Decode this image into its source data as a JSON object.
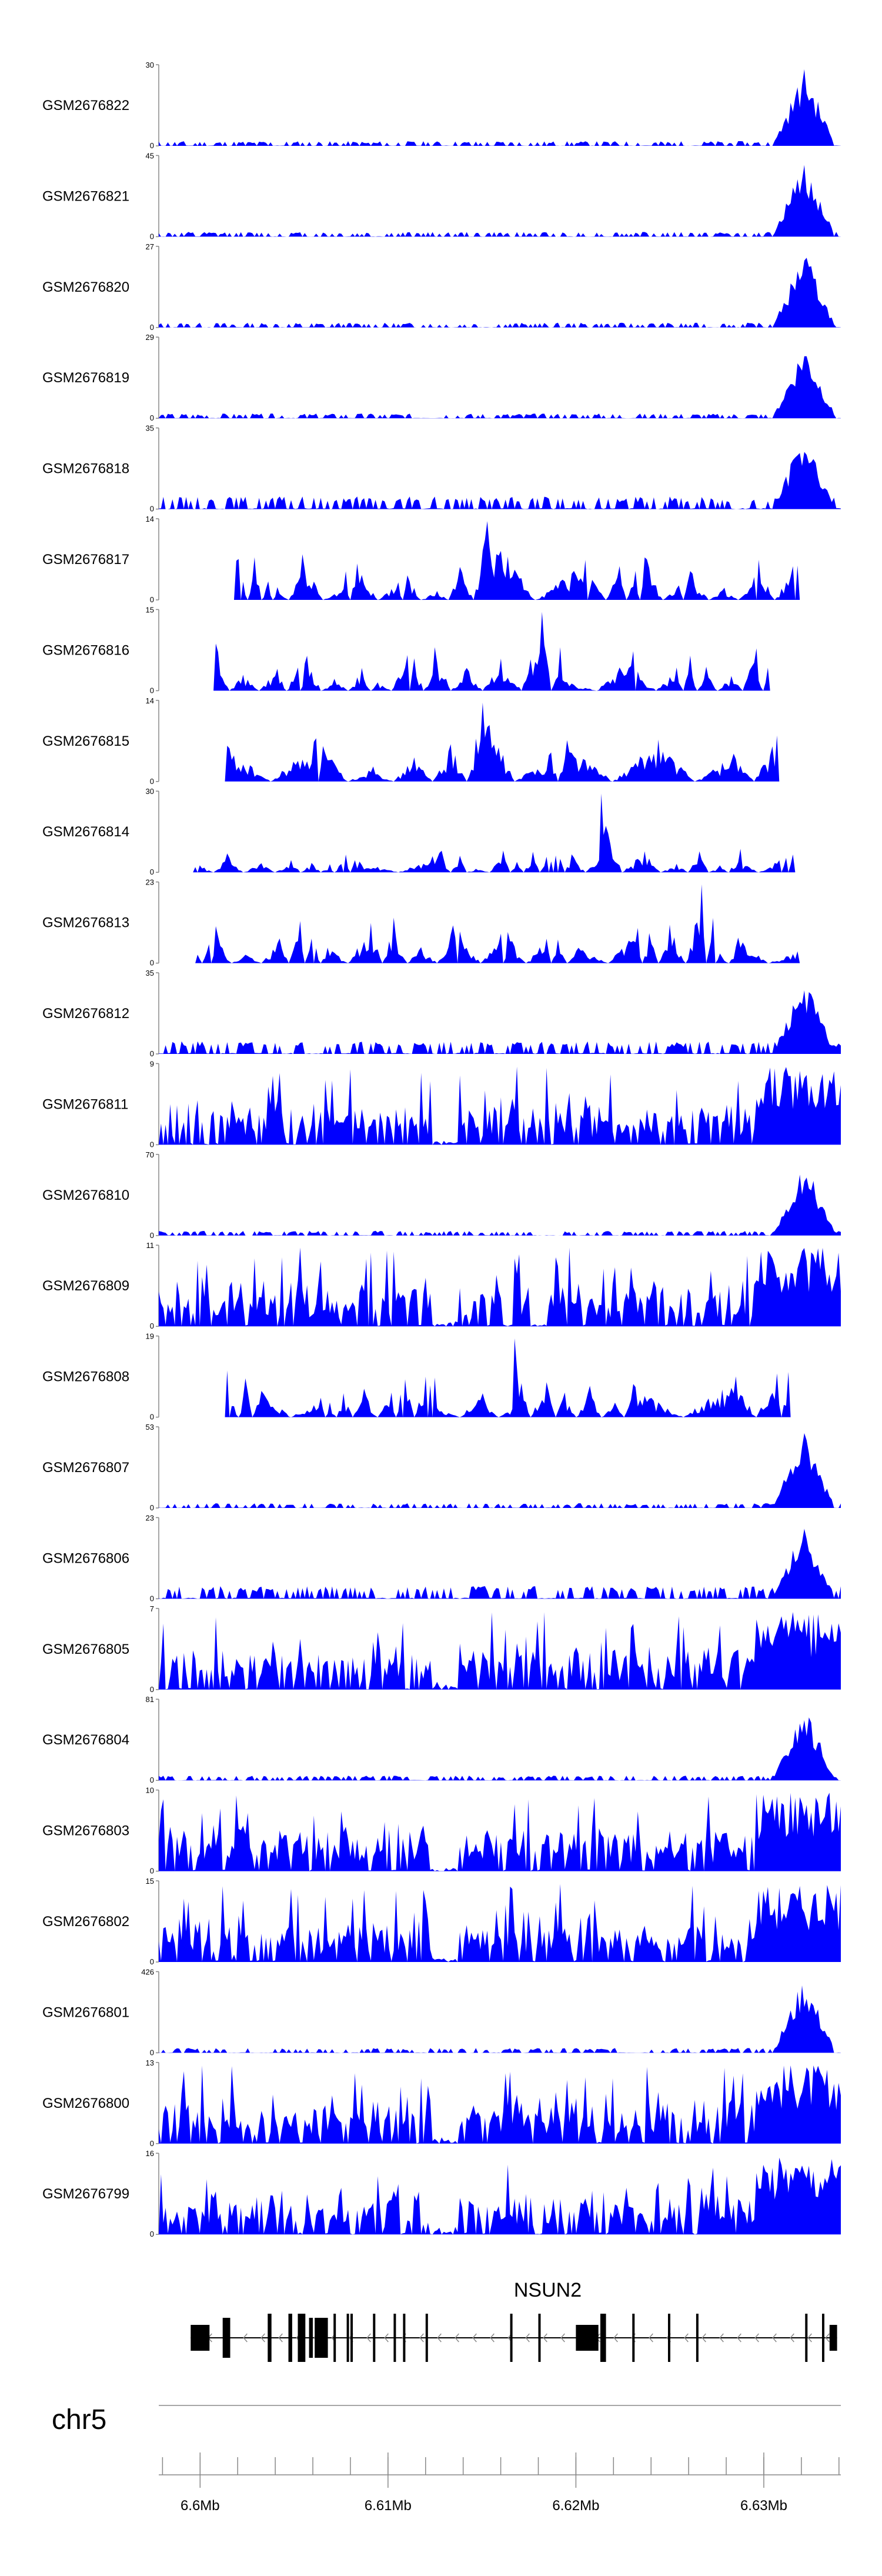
{
  "chart_data": {
    "type": "area",
    "x_range_mb": [
      6.5978,
      6.6341
    ],
    "series": [
      {
        "name": "GSM2676822",
        "ymax": "30",
        "profile": "peak",
        "seed": 11
      },
      {
        "name": "GSM2676821",
        "ymax": "45",
        "profile": "peak",
        "seed": 12
      },
      {
        "name": "GSM2676820",
        "ymax": "27",
        "profile": "peak",
        "seed": 13
      },
      {
        "name": "GSM2676819",
        "ymax": "29",
        "profile": "peak",
        "seed": 14
      },
      {
        "name": "GSM2676818",
        "ymax": "35",
        "profile": "peak_mid",
        "seed": 15
      },
      {
        "name": "GSM2676817",
        "ymax": "14",
        "profile": "sparse",
        "seed": 16
      },
      {
        "name": "GSM2676816",
        "ymax": "15",
        "profile": "sparse",
        "seed": 17
      },
      {
        "name": "GSM2676815",
        "ymax": "14",
        "profile": "very_sparse",
        "seed": 18
      },
      {
        "name": "GSM2676814",
        "ymax": "30",
        "profile": "sparse_low",
        "seed": 19
      },
      {
        "name": "GSM2676813",
        "ymax": "23",
        "profile": "sparse",
        "seed": 20
      },
      {
        "name": "GSM2676812",
        "ymax": "35",
        "profile": "peak_mid",
        "seed": 21
      },
      {
        "name": "GSM2676811",
        "ymax": "9",
        "profile": "dense",
        "seed": 22
      },
      {
        "name": "GSM2676810",
        "ymax": "70",
        "profile": "peak",
        "seed": 23
      },
      {
        "name": "GSM2676809",
        "ymax": "11",
        "profile": "dense",
        "seed": 24
      },
      {
        "name": "GSM2676808",
        "ymax": "19",
        "profile": "sparse",
        "seed": 25
      },
      {
        "name": "GSM2676807",
        "ymax": "53",
        "profile": "peak",
        "seed": 26
      },
      {
        "name": "GSM2676806",
        "ymax": "23",
        "profile": "peak_mid",
        "seed": 27
      },
      {
        "name": "GSM2676805",
        "ymax": "7",
        "profile": "dense",
        "seed": 28
      },
      {
        "name": "GSM2676804",
        "ymax": "81",
        "profile": "peak",
        "seed": 29
      },
      {
        "name": "GSM2676803",
        "ymax": "10",
        "profile": "dense",
        "seed": 30
      },
      {
        "name": "GSM2676802",
        "ymax": "15",
        "profile": "dense",
        "seed": 31
      },
      {
        "name": "GSM2676801",
        "ymax": "426",
        "profile": "peak",
        "seed": 32
      },
      {
        "name": "GSM2676800",
        "ymax": "13",
        "profile": "dense",
        "seed": 33
      },
      {
        "name": "GSM2676799",
        "ymax": "16",
        "profile": "dense",
        "seed": 34
      }
    ],
    "ymin_label": "0",
    "gene": {
      "name": "NSUN2",
      "strand": "-",
      "start_mb": 6.5995,
      "end_mb": 6.6339,
      "exons_mb": [
        [
          6.5995,
          6.6005
        ],
        [
          6.6012,
          6.6016
        ],
        [
          6.6036,
          6.6038
        ],
        [
          6.6047,
          6.6049
        ],
        [
          6.6052,
          6.6056
        ],
        [
          6.6058,
          6.606
        ],
        [
          6.6061,
          6.6068
        ],
        [
          6.6071,
          6.6072
        ],
        [
          6.6078,
          6.6079
        ],
        [
          6.608,
          6.6081
        ],
        [
          6.6092,
          6.6093
        ],
        [
          6.6103,
          6.6104
        ],
        [
          6.6108,
          6.6109
        ],
        [
          6.612,
          6.6121
        ],
        [
          6.6165,
          6.6166
        ],
        [
          6.618,
          6.6181
        ],
        [
          6.62,
          6.6212
        ],
        [
          6.6213,
          6.6216
        ],
        [
          6.623,
          6.6231
        ],
        [
          6.6249,
          6.625
        ],
        [
          6.6264,
          6.6265
        ],
        [
          6.6322,
          6.6323
        ],
        [
          6.6331,
          6.6332
        ],
        [
          6.6335,
          6.6339
        ]
      ]
    },
    "chromosome": "chr5",
    "ticks_mb": [
      6.6,
      6.61,
      6.62,
      6.63
    ],
    "tick_labels": [
      "6.6Mb",
      "6.61Mb",
      "6.62Mb",
      "6.63Mb"
    ],
    "minor_tick_step_mb": 0.002
  }
}
